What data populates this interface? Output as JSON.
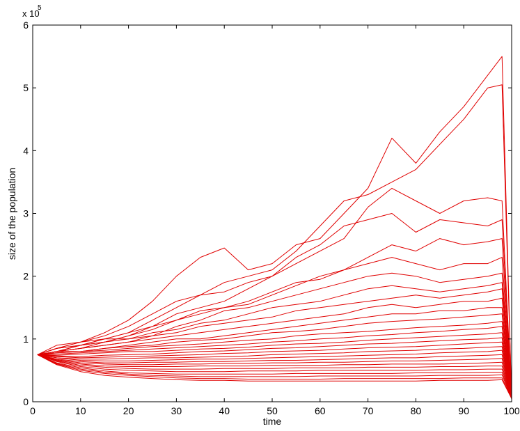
{
  "chart_data": {
    "type": "line",
    "title": "",
    "xlabel": "time",
    "ylabel": "size of the population",
    "y_multiplier_label": "x 10",
    "y_multiplier_exponent": "5",
    "xlim": [
      0,
      100
    ],
    "ylim": [
      0,
      6
    ],
    "x_ticks": [
      "0",
      "10",
      "20",
      "30",
      "40",
      "50",
      "60",
      "70",
      "80",
      "90",
      "100"
    ],
    "y_ticks": [
      "0",
      "1",
      "2",
      "3",
      "4",
      "5",
      "6"
    ],
    "grid": false,
    "legend": "none",
    "line_color": "#e00000",
    "x": [
      1,
      5,
      10,
      15,
      20,
      25,
      30,
      35,
      40,
      45,
      50,
      55,
      60,
      65,
      70,
      75,
      80,
      85,
      90,
      95,
      98,
      100
    ],
    "series": [
      {
        "values": [
          0.75,
          0.9,
          0.95,
          1.1,
          1.3,
          1.6,
          2.0,
          2.3,
          2.45,
          2.1,
          2.2,
          2.5,
          2.6,
          3.0,
          3.4,
          4.2,
          3.8,
          4.3,
          4.7,
          5.2,
          5.5,
          0.05
        ]
      },
      {
        "values": [
          0.75,
          0.85,
          0.9,
          1.0,
          1.1,
          1.3,
          1.5,
          1.7,
          1.9,
          2.0,
          2.1,
          2.4,
          2.8,
          3.2,
          3.3,
          3.5,
          3.7,
          4.1,
          4.5,
          5.0,
          5.05,
          0.05
        ]
      },
      {
        "values": [
          0.75,
          0.8,
          0.85,
          0.95,
          1.05,
          1.2,
          1.4,
          1.5,
          1.6,
          1.8,
          2.0,
          2.2,
          2.4,
          2.6,
          3.1,
          3.4,
          3.2,
          3.0,
          3.2,
          3.25,
          3.2,
          0.05
        ]
      },
      {
        "values": [
          0.75,
          0.85,
          0.95,
          1.05,
          1.2,
          1.4,
          1.6,
          1.7,
          1.75,
          1.9,
          2.0,
          2.3,
          2.5,
          2.8,
          2.9,
          3.0,
          2.7,
          2.9,
          2.85,
          2.8,
          2.9,
          0.05
        ]
      },
      {
        "values": [
          0.75,
          0.8,
          0.9,
          0.95,
          1.05,
          1.15,
          1.3,
          1.4,
          1.5,
          1.55,
          1.7,
          1.85,
          2.0,
          2.1,
          2.3,
          2.5,
          2.4,
          2.6,
          2.5,
          2.55,
          2.6,
          0.05
        ]
      },
      {
        "values": [
          0.75,
          0.85,
          0.95,
          1.0,
          1.1,
          1.2,
          1.3,
          1.45,
          1.5,
          1.6,
          1.75,
          1.9,
          1.95,
          2.1,
          2.2,
          2.3,
          2.2,
          2.1,
          2.2,
          2.2,
          2.3,
          0.05
        ]
      },
      {
        "values": [
          0.75,
          0.8,
          0.85,
          0.9,
          0.95,
          1.05,
          1.2,
          1.3,
          1.45,
          1.5,
          1.6,
          1.7,
          1.8,
          1.9,
          2.0,
          2.05,
          2.0,
          1.9,
          1.95,
          2.0,
          2.05,
          0.05
        ]
      },
      {
        "values": [
          0.75,
          0.8,
          0.9,
          1.0,
          1.0,
          1.1,
          1.15,
          1.25,
          1.3,
          1.4,
          1.5,
          1.55,
          1.6,
          1.7,
          1.8,
          1.85,
          1.8,
          1.75,
          1.8,
          1.85,
          1.9,
          0.05
        ]
      },
      {
        "values": [
          0.75,
          0.85,
          0.9,
          0.95,
          1.0,
          1.05,
          1.1,
          1.2,
          1.25,
          1.3,
          1.35,
          1.45,
          1.5,
          1.55,
          1.6,
          1.65,
          1.7,
          1.65,
          1.7,
          1.75,
          1.8,
          0.05
        ]
      },
      {
        "values": [
          0.75,
          0.8,
          0.85,
          0.9,
          0.95,
          1.0,
          1.05,
          1.1,
          1.15,
          1.2,
          1.25,
          1.3,
          1.35,
          1.4,
          1.5,
          1.55,
          1.5,
          1.55,
          1.6,
          1.6,
          1.65,
          0.05
        ]
      },
      {
        "values": [
          0.75,
          0.8,
          0.8,
          0.85,
          0.9,
          0.95,
          1.0,
          1.0,
          1.05,
          1.1,
          1.15,
          1.2,
          1.25,
          1.3,
          1.35,
          1.4,
          1.4,
          1.45,
          1.45,
          1.5,
          1.5,
          0.05
        ]
      },
      {
        "values": [
          0.75,
          0.78,
          0.8,
          0.85,
          0.88,
          0.9,
          0.95,
          0.98,
          1.0,
          1.05,
          1.1,
          1.12,
          1.15,
          1.2,
          1.25,
          1.28,
          1.3,
          1.32,
          1.35,
          1.38,
          1.4,
          0.05
        ]
      },
      {
        "values": [
          0.75,
          0.78,
          0.8,
          0.82,
          0.85,
          0.88,
          0.9,
          0.92,
          0.95,
          0.98,
          1.0,
          1.05,
          1.08,
          1.1,
          1.12,
          1.15,
          1.18,
          1.2,
          1.22,
          1.25,
          1.28,
          0.05
        ]
      },
      {
        "values": [
          0.75,
          0.76,
          0.78,
          0.8,
          0.82,
          0.84,
          0.86,
          0.88,
          0.9,
          0.92,
          0.95,
          0.97,
          1.0,
          1.02,
          1.05,
          1.07,
          1.1,
          1.12,
          1.15,
          1.17,
          1.2,
          0.05
        ]
      },
      {
        "values": [
          0.75,
          0.74,
          0.76,
          0.78,
          0.8,
          0.8,
          0.82,
          0.84,
          0.85,
          0.87,
          0.9,
          0.92,
          0.93,
          0.95,
          0.98,
          1.0,
          1.02,
          1.04,
          1.06,
          1.08,
          1.1,
          0.05
        ]
      },
      {
        "values": [
          0.75,
          0.73,
          0.72,
          0.74,
          0.75,
          0.76,
          0.78,
          0.8,
          0.81,
          0.83,
          0.85,
          0.86,
          0.88,
          0.9,
          0.92,
          0.93,
          0.95,
          0.97,
          0.99,
          1.0,
          1.02,
          0.05
        ]
      },
      {
        "values": [
          0.75,
          0.72,
          0.7,
          0.71,
          0.72,
          0.73,
          0.74,
          0.75,
          0.77,
          0.78,
          0.8,
          0.81,
          0.82,
          0.84,
          0.86,
          0.87,
          0.88,
          0.9,
          0.92,
          0.94,
          0.95,
          0.05
        ]
      },
      {
        "values": [
          0.75,
          0.7,
          0.68,
          0.68,
          0.69,
          0.7,
          0.7,
          0.71,
          0.72,
          0.73,
          0.75,
          0.76,
          0.77,
          0.78,
          0.8,
          0.81,
          0.82,
          0.84,
          0.85,
          0.87,
          0.88,
          0.05
        ]
      },
      {
        "values": [
          0.75,
          0.7,
          0.66,
          0.65,
          0.65,
          0.66,
          0.67,
          0.68,
          0.68,
          0.69,
          0.7,
          0.71,
          0.72,
          0.73,
          0.74,
          0.75,
          0.76,
          0.78,
          0.79,
          0.8,
          0.82,
          0.05
        ]
      },
      {
        "values": [
          0.75,
          0.68,
          0.64,
          0.62,
          0.62,
          0.63,
          0.63,
          0.64,
          0.64,
          0.65,
          0.66,
          0.66,
          0.67,
          0.68,
          0.69,
          0.7,
          0.7,
          0.72,
          0.73,
          0.74,
          0.75,
          0.05
        ]
      },
      {
        "values": [
          0.75,
          0.67,
          0.62,
          0.6,
          0.59,
          0.59,
          0.6,
          0.6,
          0.61,
          0.61,
          0.62,
          0.62,
          0.63,
          0.63,
          0.64,
          0.65,
          0.65,
          0.66,
          0.67,
          0.68,
          0.69,
          0.05
        ]
      },
      {
        "values": [
          0.75,
          0.66,
          0.6,
          0.57,
          0.56,
          0.56,
          0.56,
          0.57,
          0.57,
          0.57,
          0.58,
          0.58,
          0.58,
          0.59,
          0.59,
          0.6,
          0.6,
          0.6,
          0.61,
          0.62,
          0.63,
          0.05
        ]
      },
      {
        "values": [
          0.75,
          0.65,
          0.58,
          0.55,
          0.53,
          0.52,
          0.52,
          0.52,
          0.53,
          0.53,
          0.53,
          0.54,
          0.54,
          0.54,
          0.55,
          0.55,
          0.55,
          0.56,
          0.56,
          0.57,
          0.57,
          0.05
        ]
      },
      {
        "values": [
          0.75,
          0.64,
          0.56,
          0.52,
          0.5,
          0.49,
          0.48,
          0.48,
          0.48,
          0.49,
          0.49,
          0.49,
          0.5,
          0.5,
          0.5,
          0.5,
          0.5,
          0.51,
          0.51,
          0.52,
          0.52,
          0.05
        ]
      },
      {
        "values": [
          0.75,
          0.62,
          0.54,
          0.49,
          0.46,
          0.45,
          0.44,
          0.44,
          0.44,
          0.44,
          0.44,
          0.45,
          0.45,
          0.45,
          0.45,
          0.45,
          0.46,
          0.46,
          0.46,
          0.47,
          0.47,
          0.05
        ]
      },
      {
        "values": [
          0.75,
          0.61,
          0.52,
          0.47,
          0.44,
          0.42,
          0.41,
          0.4,
          0.4,
          0.4,
          0.4,
          0.4,
          0.41,
          0.41,
          0.41,
          0.41,
          0.41,
          0.42,
          0.42,
          0.42,
          0.43,
          0.05
        ]
      },
      {
        "values": [
          0.75,
          0.6,
          0.5,
          0.45,
          0.42,
          0.4,
          0.38,
          0.37,
          0.37,
          0.36,
          0.36,
          0.36,
          0.36,
          0.37,
          0.37,
          0.37,
          0.37,
          0.37,
          0.38,
          0.38,
          0.38,
          0.05
        ]
      },
      {
        "values": [
          0.75,
          0.59,
          0.48,
          0.42,
          0.39,
          0.37,
          0.35,
          0.34,
          0.34,
          0.33,
          0.33,
          0.33,
          0.33,
          0.33,
          0.33,
          0.33,
          0.33,
          0.34,
          0.34,
          0.34,
          0.35,
          0.05
        ]
      }
    ]
  }
}
